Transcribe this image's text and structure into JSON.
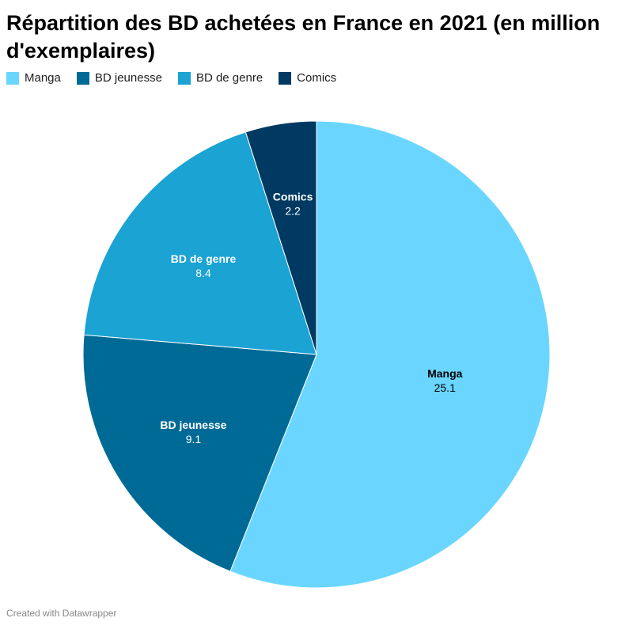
{
  "chart_data": {
    "type": "pie",
    "title": "Répartition des BD achetées en France en 2021 (en million d'exemplaires)",
    "categories": [
      "Manga",
      "BD jeunesse",
      "BD de genre",
      "Comics"
    ],
    "values": [
      25.1,
      9.1,
      8.4,
      2.2
    ],
    "value_labels": [
      "25.1",
      "9.1",
      "8.4",
      "2.2"
    ],
    "colors": [
      "#6ad6ff",
      "#006a96",
      "#1aa3d3",
      "#003a62"
    ],
    "label_colors": [
      "#000000",
      "#ffffff",
      "#ffffff",
      "#ffffff"
    ],
    "start": "top",
    "direction": "clockwise",
    "legend_position": "top-left"
  },
  "footer": {
    "credit": "Created with Datawrapper"
  }
}
